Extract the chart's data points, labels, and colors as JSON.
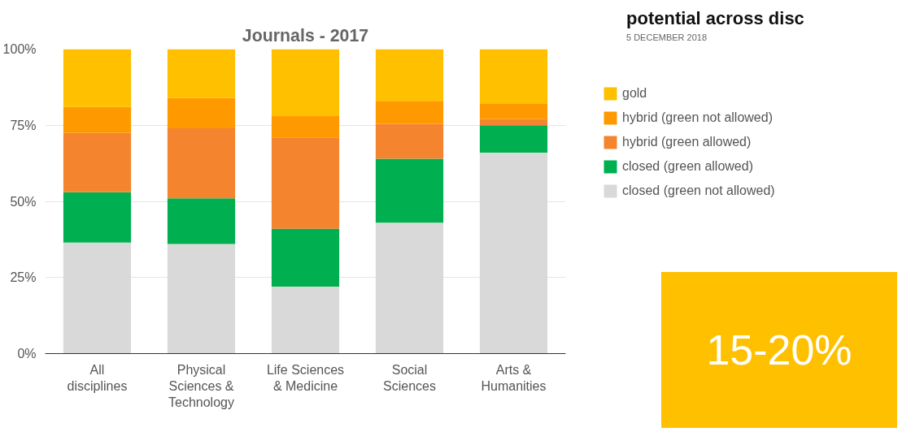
{
  "chart_data": {
    "type": "bar",
    "stacked": true,
    "title": "Journals - 2017",
    "categories": [
      "All disciplines",
      "Physical Sciences & Technology",
      "Life Sciences & Medicine",
      "Social Sciences",
      "Arts & Humanities"
    ],
    "series": [
      {
        "name": "closed (green not allowed)",
        "color": "#d9d9d9",
        "values": [
          36.5,
          36,
          22,
          43,
          66
        ]
      },
      {
        "name": "closed (green allowed)",
        "color": "#00b050",
        "values": [
          16.5,
          15,
          19,
          21,
          9
        ]
      },
      {
        "name": "hybrid (green allowed)",
        "color": "#f5842e",
        "values": [
          19.5,
          23,
          30,
          11.5,
          2
        ]
      },
      {
        "name": "hybrid (green not allowed)",
        "color": "#ff9900",
        "values": [
          8.5,
          10,
          7,
          7.5,
          5
        ]
      },
      {
        "name": "gold",
        "color": "#ffc000",
        "values": [
          19,
          16,
          22,
          17,
          18
        ]
      }
    ],
    "ylim": [
      0,
      100
    ],
    "yticks": [
      {
        "value": 0,
        "label": "0%"
      },
      {
        "value": 25,
        "label": "25%"
      },
      {
        "value": 50,
        "label": "50%"
      },
      {
        "value": 75,
        "label": "75%"
      },
      {
        "value": 100,
        "label": "100%"
      }
    ],
    "grid": "y",
    "legend": "right",
    "annotations": [
      "potential across disc",
      "5 DECEMBER 2018",
      "15-20%"
    ]
  }
}
